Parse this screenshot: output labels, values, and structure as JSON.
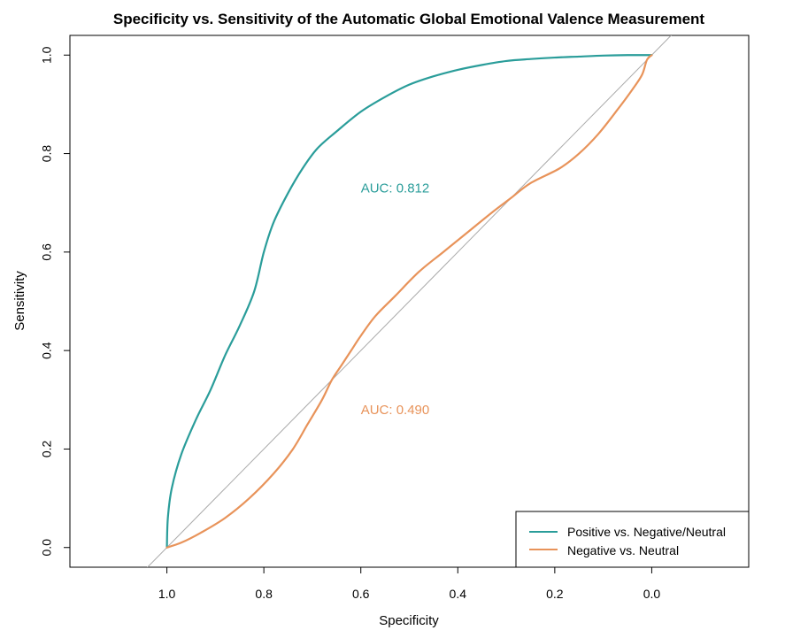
{
  "chart_data": {
    "type": "line",
    "title": "Specificity vs. Sensitivity of the Automatic Global Emotional Valence Measurement",
    "xlabel": "Specificity",
    "ylabel": "Sensitivity",
    "x_axis_reversed": true,
    "xlim": [
      1.2,
      -0.2
    ],
    "ylim": [
      -0.04,
      1.04
    ],
    "x_ticks": [
      1.0,
      0.8,
      0.6,
      0.4,
      0.2,
      0.0
    ],
    "x_tick_labels": [
      "1.0",
      "0.8",
      "0.6",
      "0.4",
      "0.2",
      "0.0"
    ],
    "y_ticks": [
      0.0,
      0.2,
      0.4,
      0.6,
      0.8,
      1.0
    ],
    "y_tick_labels": [
      "0.0",
      "0.2",
      "0.4",
      "0.6",
      "0.8",
      "1.0"
    ],
    "grid": false,
    "legend_position": "bottom-right",
    "reference_line": {
      "from": [
        1.0,
        0.0
      ],
      "to": [
        0.0,
        1.0
      ],
      "color": "#aaaaaa"
    },
    "series": [
      {
        "name": "Positive vs. Negative/Neutral",
        "color": "#2a9d9a",
        "auc_label": "AUC: 0.812",
        "auc_label_pos": [
          0.6,
          0.73
        ],
        "points": [
          [
            1.0,
            0.0
          ],
          [
            0.998,
            0.06
          ],
          [
            0.99,
            0.12
          ],
          [
            0.97,
            0.19
          ],
          [
            0.94,
            0.26
          ],
          [
            0.91,
            0.32
          ],
          [
            0.88,
            0.39
          ],
          [
            0.85,
            0.45
          ],
          [
            0.82,
            0.52
          ],
          [
            0.8,
            0.6
          ],
          [
            0.78,
            0.66
          ],
          [
            0.75,
            0.72
          ],
          [
            0.72,
            0.77
          ],
          [
            0.69,
            0.81
          ],
          [
            0.65,
            0.845
          ],
          [
            0.6,
            0.885
          ],
          [
            0.55,
            0.915
          ],
          [
            0.5,
            0.94
          ],
          [
            0.45,
            0.957
          ],
          [
            0.4,
            0.97
          ],
          [
            0.35,
            0.98
          ],
          [
            0.3,
            0.988
          ],
          [
            0.25,
            0.992
          ],
          [
            0.2,
            0.995
          ],
          [
            0.15,
            0.997
          ],
          [
            0.1,
            0.999
          ],
          [
            0.05,
            1.0
          ],
          [
            0.0,
            1.0
          ]
        ]
      },
      {
        "name": "Negative vs. Neutral",
        "color": "#e8935a",
        "auc_label": "AUC: 0.490",
        "auc_label_pos": [
          0.6,
          0.28
        ],
        "points": [
          [
            1.0,
            0.0
          ],
          [
            0.97,
            0.01
          ],
          [
            0.93,
            0.03
          ],
          [
            0.88,
            0.06
          ],
          [
            0.83,
            0.1
          ],
          [
            0.78,
            0.15
          ],
          [
            0.74,
            0.2
          ],
          [
            0.71,
            0.25
          ],
          [
            0.68,
            0.3
          ],
          [
            0.66,
            0.34
          ],
          [
            0.64,
            0.37
          ],
          [
            0.62,
            0.4
          ],
          [
            0.6,
            0.43
          ],
          [
            0.57,
            0.47
          ],
          [
            0.53,
            0.51
          ],
          [
            0.48,
            0.56
          ],
          [
            0.43,
            0.6
          ],
          [
            0.38,
            0.64
          ],
          [
            0.33,
            0.68
          ],
          [
            0.29,
            0.71
          ],
          [
            0.25,
            0.74
          ],
          [
            0.19,
            0.77
          ],
          [
            0.15,
            0.8
          ],
          [
            0.11,
            0.84
          ],
          [
            0.07,
            0.89
          ],
          [
            0.04,
            0.93
          ],
          [
            0.02,
            0.96
          ],
          [
            0.01,
            0.99
          ],
          [
            0.0,
            1.0
          ]
        ]
      }
    ]
  }
}
